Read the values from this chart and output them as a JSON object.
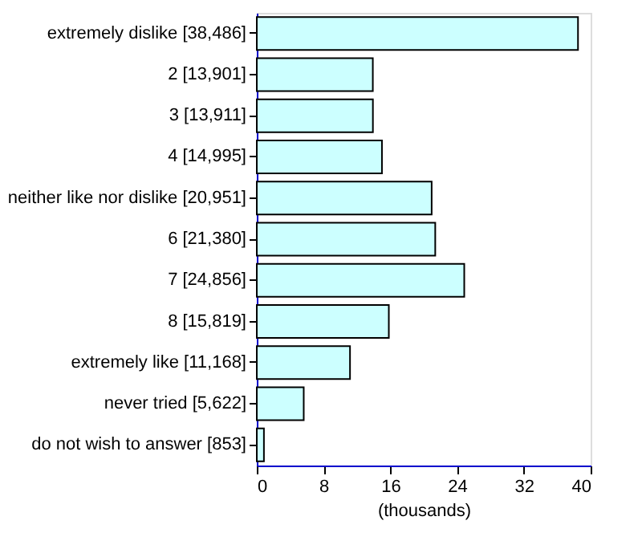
{
  "chart_data": {
    "type": "bar",
    "orientation": "horizontal",
    "xlabel": "(thousands)",
    "categories": [
      "extremely dislike [38,486]",
      "2 [13,901]",
      "3 [13,911]",
      "4 [14,995]",
      "neither like nor dislike [20,951]",
      "6 [21,380]",
      "7 [24,856]",
      "8 [15,819]",
      "extremely like [11,168]",
      "never tried [5,622]",
      "do not wish to answer [853]"
    ],
    "values": [
      38.486,
      13.901,
      13.911,
      14.995,
      20.951,
      21.38,
      24.856,
      15.819,
      11.168,
      5.622,
      0.853
    ],
    "color": "#ccffff",
    "xlim": [
      0,
      40
    ],
    "xticks": [
      0,
      8,
      16,
      24,
      32,
      40
    ]
  }
}
